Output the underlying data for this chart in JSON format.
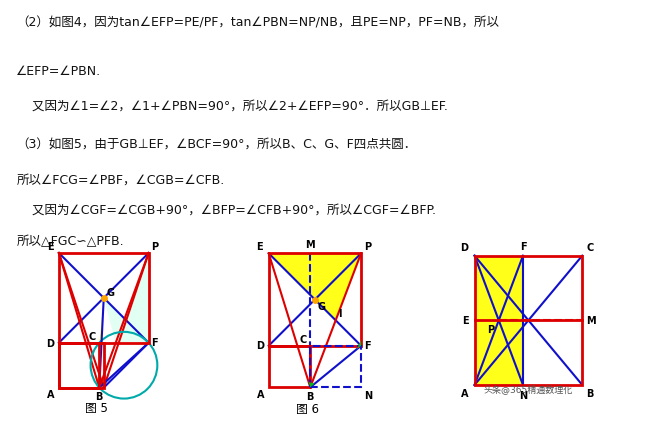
{
  "bg_color": "#ffffff",
  "red": "#dd0000",
  "blue": "#1010cc",
  "yellow": "#ffff00",
  "cyan": "#aaffee",
  "green": "#00cc00",
  "teal": "#00aaaa",
  "fig_width": 6.4,
  "fig_height": 4.04,
  "lfs": 7.0,
  "fig5_label": "图 5",
  "fig6_label": "图 6",
  "watermark": "头条@365精通数理化",
  "text_lines": [
    "（2）如图4，因为tan∠EFP=PE/PF，tan∠PBN=NP/NB，且PE=NP，PF=NB，所以",
    "∠EFP=∠PBN.",
    "    又因为∠1=∠2，∠1+∠PBN=90°，所以∠2+∠EFP=90°．所以GB⊥EF.",
    "（3）如图5，由于GB⊥EF，∠BCF=90°，所以B、C、G、F四点共圆．",
    "所以∠FCG=∠PBF，∠CGB=∠CFB.",
    "    又因为∠CGF=∠CGB+90°，∠BFP=∠CFB+90°，所以∠CGF=∠BFP.",
    "所以△FGC∽△PFB."
  ]
}
